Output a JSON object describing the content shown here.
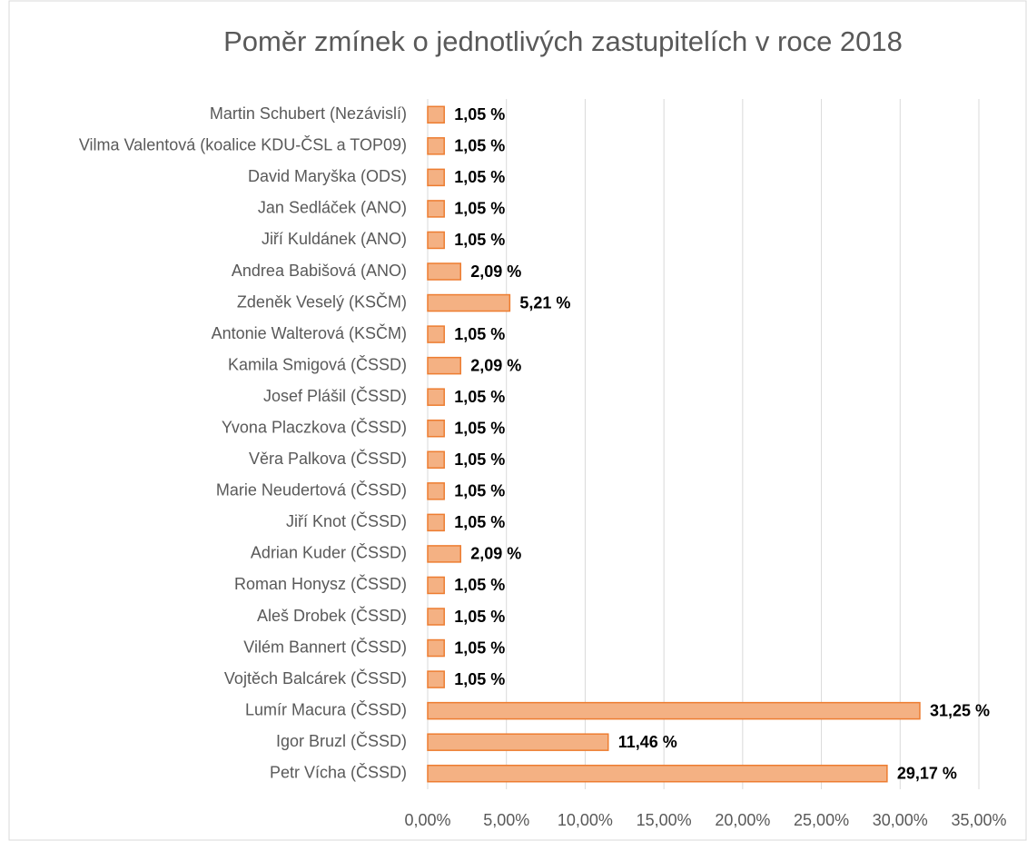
{
  "chart_data": {
    "type": "bar",
    "orientation": "horizontal",
    "title": "Poměr zmínek o jednotlivých zastupitelích v roce 2018",
    "categories": [
      "Martin Schubert (Nezávislí)",
      "Vilma Valentová (koalice KDU-ČSL a TOP09)",
      "David Maryška (ODS)",
      "Jan Sedláček (ANO)",
      "Jiří Kuldánek (ANO)",
      "Andrea Babišová (ANO)",
      "Zdeněk Veselý (KSČM)",
      "Antonie Walterová (KSČM)",
      "Kamila Smigová (ČSSD)",
      "Josef Plášil (ČSSD)",
      "Yvona Placzkova (ČSSD)",
      "Věra Palkova (ČSSD)",
      "Marie Neudertová (ČSSD)",
      "Jiří Knot (ČSSD)",
      "Adrian Kuder (ČSSD)",
      "Roman Honysz (ČSSD)",
      "Aleš Drobek (ČSSD)",
      "Vilém Bannert (ČSSD)",
      "Vojtěch Balcárek (ČSSD)",
      "Lumír Macura (ČSSD)",
      "Igor Bruzl (ČSSD)",
      "Petr Vícha (ČSSD)"
    ],
    "values": [
      1.05,
      1.05,
      1.05,
      1.05,
      1.05,
      2.09,
      5.21,
      1.05,
      2.09,
      1.05,
      1.05,
      1.05,
      1.05,
      1.05,
      2.09,
      1.05,
      1.05,
      1.05,
      1.05,
      31.25,
      11.46,
      29.17
    ],
    "value_labels": [
      "1,05 %",
      "1,05 %",
      "1,05 %",
      "1,05 %",
      "1,05 %",
      "2,09 %",
      "5,21 %",
      "1,05 %",
      "2,09 %",
      "1,05 %",
      "1,05 %",
      "1,05 %",
      "1,05 %",
      "1,05 %",
      "2,09 %",
      "1,05 %",
      "1,05 %",
      "1,05 %",
      "1,05 %",
      "31,25 %",
      "11,46 %",
      "29,17 %"
    ],
    "color": "#f4b183",
    "edge_color": "#ed7d31",
    "xlim": [
      0,
      35
    ],
    "xticks": [
      {
        "value": 0,
        "label": "0,00%"
      },
      {
        "value": 5,
        "label": "5,00%"
      },
      {
        "value": 10,
        "label": "10,00%"
      },
      {
        "value": 15,
        "label": "15,00%"
      },
      {
        "value": 20,
        "label": "20,00%"
      },
      {
        "value": 25,
        "label": "25,00%"
      },
      {
        "value": 30,
        "label": "30,00%"
      },
      {
        "value": 35,
        "label": "35,00%"
      }
    ],
    "grid": true
  }
}
